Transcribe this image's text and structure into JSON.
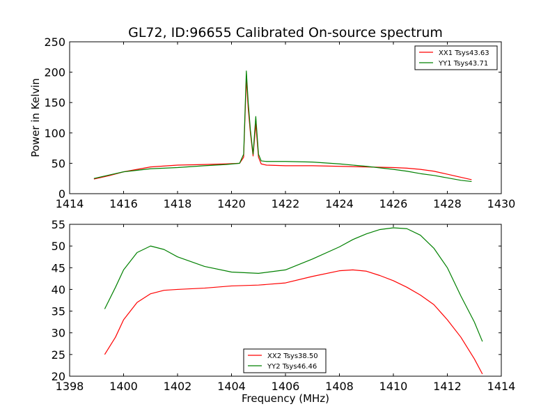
{
  "page": {
    "title": "GL72, ID:96655 Calibrated On-source spectrum",
    "background": "#ffffff"
  },
  "colors": {
    "red": "#ff0000",
    "green": "#008000"
  },
  "chart_data": [
    {
      "type": "line",
      "title": "GL72, ID:96655 Calibrated On-source spectrum",
      "xlabel": "",
      "ylabel": "Power in Kelvin",
      "xlim": [
        1414,
        1430
      ],
      "ylim": [
        0,
        250
      ],
      "xticks": [
        1414,
        1416,
        1418,
        1420,
        1422,
        1424,
        1426,
        1428,
        1430
      ],
      "yticks": [
        0,
        50,
        100,
        150,
        200,
        250
      ],
      "legend_position": "top-right",
      "grid": false,
      "series": [
        {
          "name": "XX1 Tsys43.63",
          "color": "#ff0000",
          "x": [
            1414.9,
            1415.5,
            1416.0,
            1417.0,
            1418.0,
            1419.0,
            1419.8,
            1420.3,
            1420.45,
            1420.55,
            1420.62,
            1420.7,
            1420.8,
            1420.9,
            1421.0,
            1421.1,
            1421.3,
            1422.0,
            1423.0,
            1424.0,
            1425.0,
            1426.0,
            1426.5,
            1427.0,
            1427.5,
            1428.0,
            1428.5,
            1428.9
          ],
          "y": [
            24,
            30,
            36,
            44,
            47,
            48,
            49,
            50,
            60,
            190,
            140,
            100,
            62,
            115,
            60,
            49,
            47,
            46,
            46,
            45,
            44,
            43,
            42,
            40,
            37,
            32,
            27,
            23
          ]
        },
        {
          "name": "YY1 Tsys43.71",
          "color": "#008000",
          "x": [
            1414.9,
            1415.5,
            1416.0,
            1417.0,
            1418.0,
            1419.0,
            1419.8,
            1420.3,
            1420.45,
            1420.55,
            1420.62,
            1420.7,
            1420.8,
            1420.9,
            1421.0,
            1421.1,
            1421.3,
            1422.0,
            1423.0,
            1424.0,
            1425.0,
            1426.0,
            1426.5,
            1427.0,
            1427.5,
            1428.0,
            1428.5,
            1428.9
          ],
          "y": [
            25,
            31,
            36,
            41,
            43,
            46,
            48,
            50,
            65,
            202,
            150,
            105,
            65,
            127,
            65,
            54,
            53,
            53,
            52,
            49,
            45,
            40,
            37,
            33,
            30,
            26,
            22,
            20
          ]
        }
      ]
    },
    {
      "type": "line",
      "title": "",
      "xlabel": "Frequency (MHz)",
      "ylabel": "",
      "xlim": [
        1398,
        1414
      ],
      "ylim": [
        20,
        55
      ],
      "xticks": [
        1398,
        1400,
        1402,
        1404,
        1406,
        1408,
        1410,
        1412,
        1414
      ],
      "yticks": [
        20,
        25,
        30,
        35,
        40,
        45,
        50,
        55
      ],
      "legend_position": "bottom-center",
      "grid": false,
      "series": [
        {
          "name": "XX2 Tsys38.50",
          "color": "#ff0000",
          "x": [
            1399.3,
            1399.7,
            1400.0,
            1400.5,
            1401.0,
            1401.5,
            1402.0,
            1403.0,
            1404.0,
            1405.0,
            1406.0,
            1407.0,
            1408.0,
            1408.5,
            1409.0,
            1409.5,
            1410.0,
            1410.5,
            1411.0,
            1411.5,
            1412.0,
            1412.5,
            1413.0,
            1413.3
          ],
          "y": [
            25,
            29,
            33,
            37,
            39,
            39.8,
            40,
            40.3,
            40.8,
            41,
            41.5,
            43,
            44.3,
            44.5,
            44.2,
            43.2,
            42,
            40.5,
            38.7,
            36.5,
            33,
            29,
            24,
            20.5
          ]
        },
        {
          "name": "YY2 Tsys46.46",
          "color": "#008000",
          "x": [
            1399.3,
            1399.7,
            1400.0,
            1400.5,
            1401.0,
            1401.5,
            1402.0,
            1403.0,
            1404.0,
            1405.0,
            1406.0,
            1407.0,
            1408.0,
            1408.5,
            1409.0,
            1409.5,
            1410.0,
            1410.5,
            1411.0,
            1411.5,
            1412.0,
            1412.5,
            1413.0,
            1413.3
          ],
          "y": [
            35.5,
            40.5,
            44.5,
            48.5,
            50,
            49.2,
            47.5,
            45.3,
            44,
            43.7,
            44.5,
            47,
            49.8,
            51.5,
            52.8,
            53.8,
            54.2,
            54,
            52.5,
            49.5,
            45,
            38.5,
            32.5,
            28
          ]
        }
      ]
    }
  ]
}
